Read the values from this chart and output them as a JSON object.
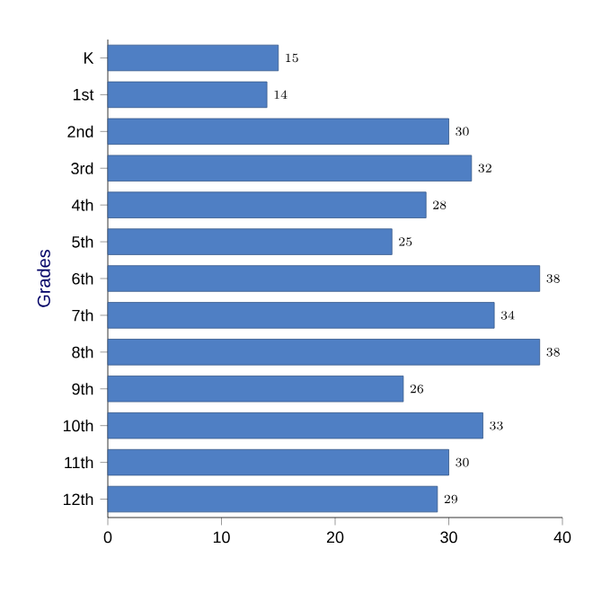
{
  "chart_data": {
    "type": "bar",
    "orientation": "horizontal",
    "ylabel": "Grades",
    "categories": [
      "K",
      "1st",
      "2nd",
      "3rd",
      "4th",
      "5th",
      "6th",
      "7th",
      "8th",
      "9th",
      "10th",
      "11th",
      "12th"
    ],
    "values": [
      15,
      14,
      30,
      32,
      28,
      25,
      38,
      34,
      38,
      26,
      33,
      30,
      29
    ],
    "color": "#4f7fc4",
    "xlim": [
      0,
      40
    ],
    "xticks": [
      0,
      10,
      20,
      30,
      40
    ],
    "data_labels": true
  }
}
